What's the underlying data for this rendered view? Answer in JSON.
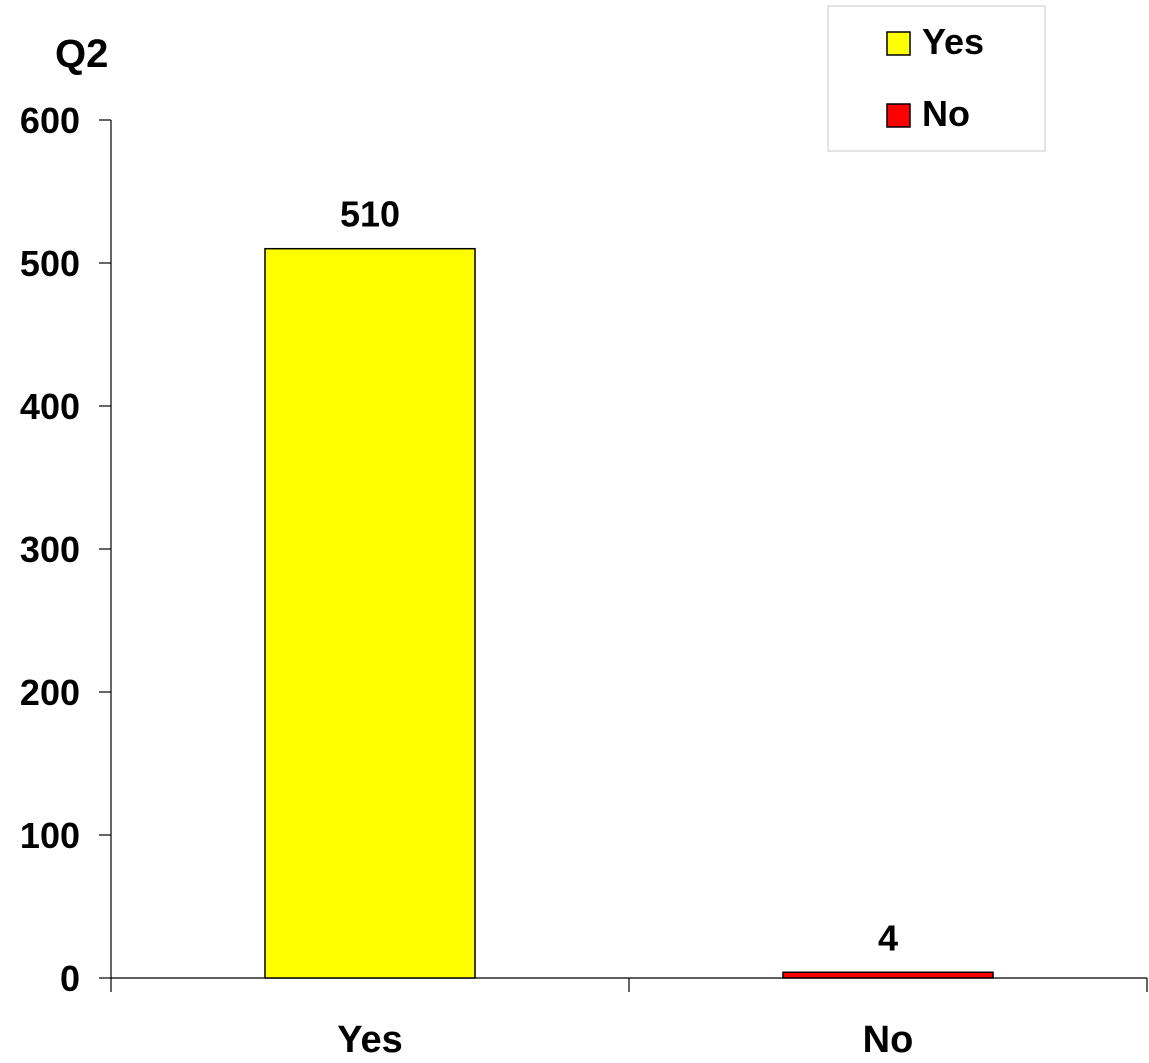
{
  "chart_data": {
    "type": "bar",
    "title": "Q2",
    "categories": [
      "Yes",
      "No"
    ],
    "values": [
      510,
      4
    ],
    "colors": [
      "#ffff00",
      "#ff0000"
    ],
    "ylim": [
      0,
      600
    ],
    "yticks": [
      0,
      100,
      200,
      300,
      400,
      500,
      600
    ],
    "xlabel": "",
    "ylabel": "",
    "grid": false,
    "legend": {
      "placement": "top-right",
      "entries": [
        {
          "label": "Yes",
          "color": "#ffff00"
        },
        {
          "label": "No",
          "color": "#ff0000"
        }
      ]
    }
  }
}
